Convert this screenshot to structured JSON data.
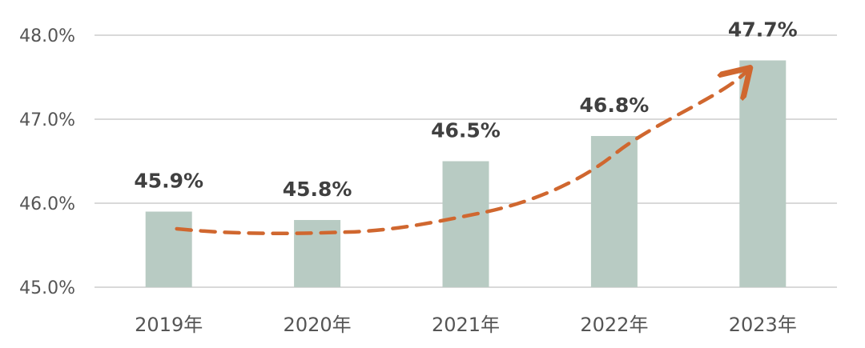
{
  "chart_data": {
    "type": "bar",
    "categories": [
      "2019年",
      "2020年",
      "2021年",
      "2022年",
      "2023年"
    ],
    "values": [
      45.9,
      45.8,
      46.5,
      46.8,
      47.7
    ],
    "value_labels": [
      "45.9%",
      "45.8%",
      "46.5%",
      "46.8%",
      "47.7%"
    ],
    "ylim": [
      45.0,
      48.0
    ],
    "yticks": [
      45.0,
      46.0,
      47.0,
      48.0
    ],
    "ytick_labels": [
      "45.0%",
      "46.0%",
      "47.0%",
      "48.0%"
    ],
    "grid": true,
    "legend": "none",
    "bar_color": "#b8cbc3",
    "trend_arrow": {
      "color": "#d0672f",
      "style": "dashed",
      "direction": "up"
    }
  }
}
